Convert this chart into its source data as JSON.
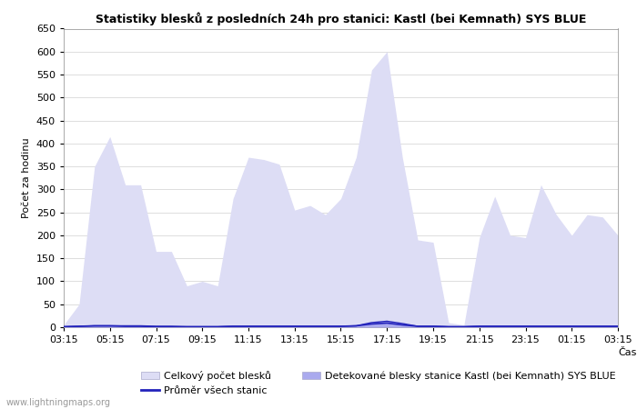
{
  "title": "Statistiky blesků z posledních 24h pro stanici: Kastl (bei Kemnath) SYS BLUE",
  "xlabel": "Čas",
  "ylabel": "Počet za hodinu",
  "ylim": [
    0,
    650
  ],
  "yticks": [
    0,
    50,
    100,
    150,
    200,
    250,
    300,
    350,
    400,
    450,
    500,
    550,
    600,
    650
  ],
  "x_labels": [
    "03:15",
    "05:15",
    "07:15",
    "09:15",
    "11:15",
    "13:15",
    "15:15",
    "17:15",
    "19:15",
    "21:15",
    "23:15",
    "01:15",
    "03:15"
  ],
  "total_color": "#ddddf5",
  "station_color": "#aaaaee",
  "avg_color": "#2222bb",
  "background_color": "#ffffff",
  "watermark": "www.lightningmaps.org",
  "legend": {
    "total_label": "Celkový počet blesků",
    "station_label": "Detekované blesky stanice Kastl (bei Kemnath) SYS BLUE",
    "avg_label": "Průměr všech stanic"
  },
  "total_values": [
    5,
    50,
    350,
    415,
    310,
    310,
    165,
    165,
    90,
    100,
    90,
    280,
    370,
    365,
    355,
    255,
    265,
    245,
    280,
    370,
    560,
    600,
    370,
    190,
    185,
    10,
    5,
    195,
    285,
    200,
    195,
    310,
    245,
    200,
    245,
    240,
    200
  ],
  "station_values": [
    1,
    2,
    3,
    3,
    3,
    3,
    2,
    2,
    1,
    1,
    1,
    2,
    2,
    2,
    2,
    2,
    2,
    2,
    2,
    3,
    10,
    13,
    8,
    2,
    2,
    1,
    1,
    2,
    2,
    2,
    2,
    2,
    2,
    2,
    2,
    2,
    2
  ],
  "avg_values": [
    1,
    2,
    3,
    3,
    2,
    2,
    1,
    1,
    1,
    1,
    1,
    2,
    2,
    2,
    2,
    2,
    2,
    2,
    2,
    3,
    7,
    9,
    5,
    2,
    2,
    1,
    1,
    2,
    2,
    2,
    2,
    2,
    2,
    2,
    2,
    2,
    2
  ],
  "n_points": 37,
  "figsize": [
    7.0,
    4.5
  ],
  "dpi": 100
}
